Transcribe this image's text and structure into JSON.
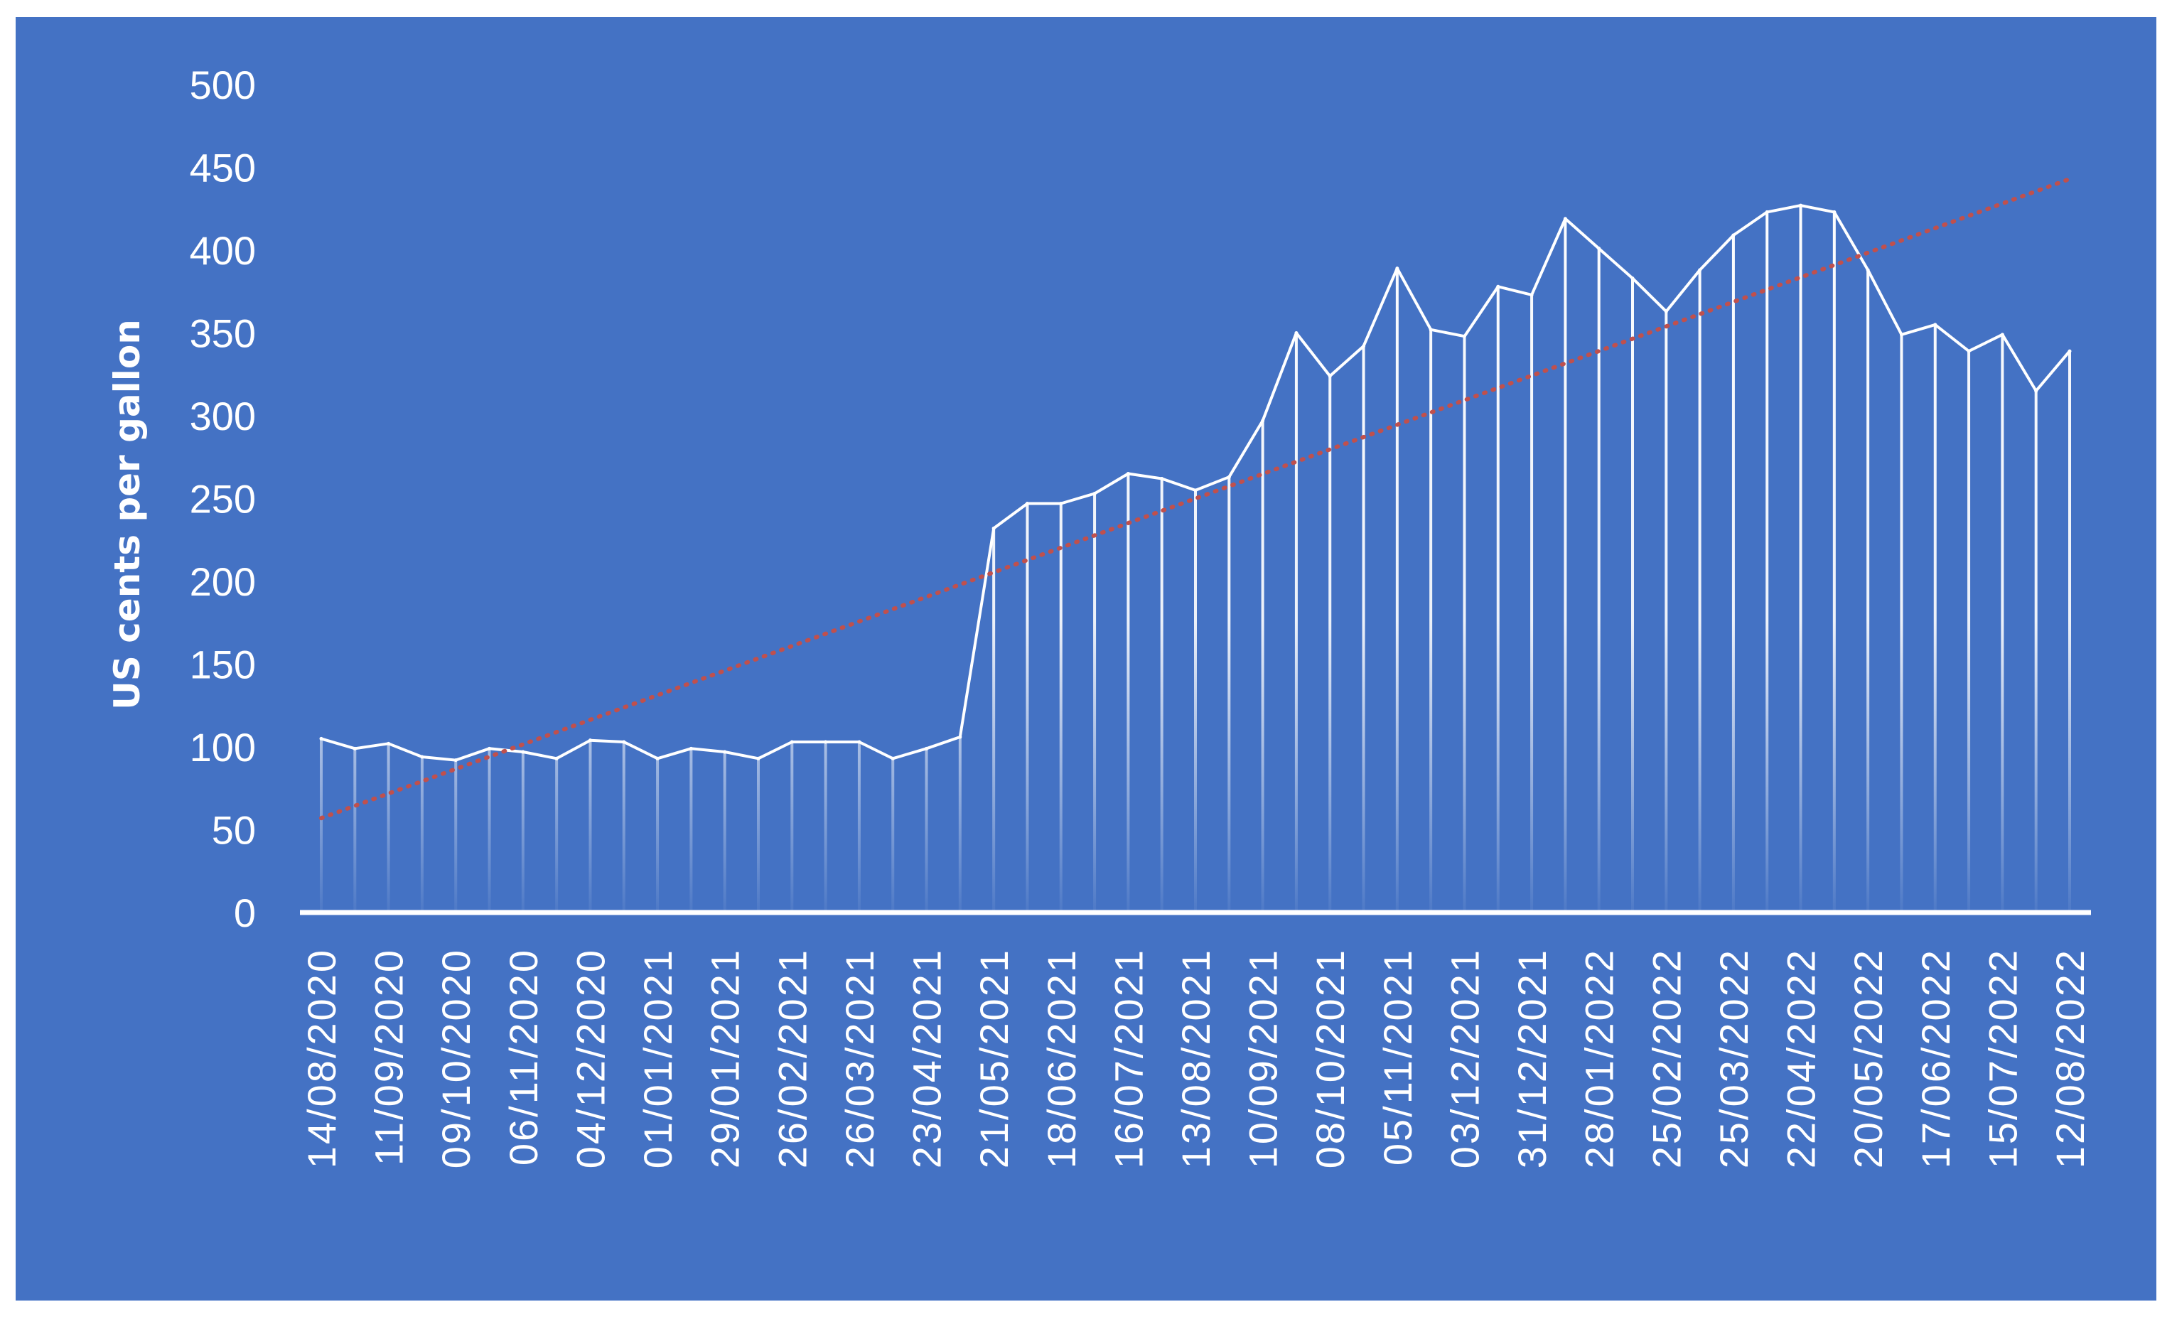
{
  "chart_data": {
    "type": "area",
    "title": "",
    "xlabel": "",
    "ylabel": "US cents per gallon",
    "ylim": [
      0,
      500
    ],
    "yticks": [
      0,
      50,
      100,
      150,
      200,
      250,
      300,
      350,
      400,
      450,
      500
    ],
    "legend": "none",
    "grid": false,
    "series_style": {
      "line_color": "#FFFFFF",
      "drop_lines": true,
      "fill": "white-gradient",
      "trendline": {
        "type": "linear",
        "style": "dotted",
        "color": "#C0504D"
      }
    },
    "x_tick_labels": [
      "14/08/2020",
      "11/09/2020",
      "09/10/2020",
      "06/11/2020",
      "04/12/2020",
      "01/01/2021",
      "29/01/2021",
      "26/02/2021",
      "26/03/2021",
      "23/04/2021",
      "21/05/2021",
      "18/06/2021",
      "16/07/2021",
      "13/08/2021",
      "10/09/2021",
      "08/10/2021",
      "05/11/2021",
      "03/12/2021",
      "31/12/2021",
      "28/01/2022",
      "25/02/2022",
      "25/03/2022",
      "22/04/2022",
      "20/05/2022",
      "17/06/2022",
      "15/07/2022",
      "12/08/2022"
    ],
    "x": [
      "14/08/2020",
      "28/08/2020",
      "11/09/2020",
      "25/09/2020",
      "09/10/2020",
      "23/10/2020",
      "06/11/2020",
      "20/11/2020",
      "04/12/2020",
      "18/12/2020",
      "01/01/2021",
      "15/01/2021",
      "29/01/2021",
      "12/02/2021",
      "26/02/2021",
      "12/03/2021",
      "26/03/2021",
      "09/04/2021",
      "23/04/2021",
      "07/05/2021",
      "21/05/2021",
      "04/06/2021",
      "18/06/2021",
      "02/07/2021",
      "16/07/2021",
      "30/07/2021",
      "13/08/2021",
      "27/08/2021",
      "10/09/2021",
      "24/09/2021",
      "08/10/2021",
      "22/10/2021",
      "05/11/2021",
      "19/11/2021",
      "03/12/2021",
      "17/12/2021",
      "31/12/2021",
      "14/01/2022",
      "28/01/2022",
      "11/02/2022",
      "25/02/2022",
      "11/03/2022",
      "25/03/2022",
      "08/04/2022",
      "22/04/2022",
      "06/05/2022",
      "20/05/2022",
      "03/06/2022",
      "17/06/2022",
      "01/07/2022",
      "15/07/2022",
      "29/07/2022",
      "12/08/2022"
    ],
    "series": [
      {
        "values": [
          105,
          99,
          102,
          94,
          92,
          99,
          97,
          93,
          104,
          103,
          93,
          99,
          97,
          93,
          103,
          103,
          103,
          93,
          99,
          106,
          232,
          247,
          247,
          253,
          265,
          262,
          255,
          263,
          297,
          350,
          324,
          342,
          389,
          352,
          348,
          378,
          373,
          419,
          401,
          383,
          363,
          388,
          409,
          423,
          427,
          423,
          388,
          349,
          355,
          339,
          349,
          315,
          339
        ]
      }
    ],
    "trendline_endpoints": {
      "start": 57,
      "end": 443
    }
  }
}
